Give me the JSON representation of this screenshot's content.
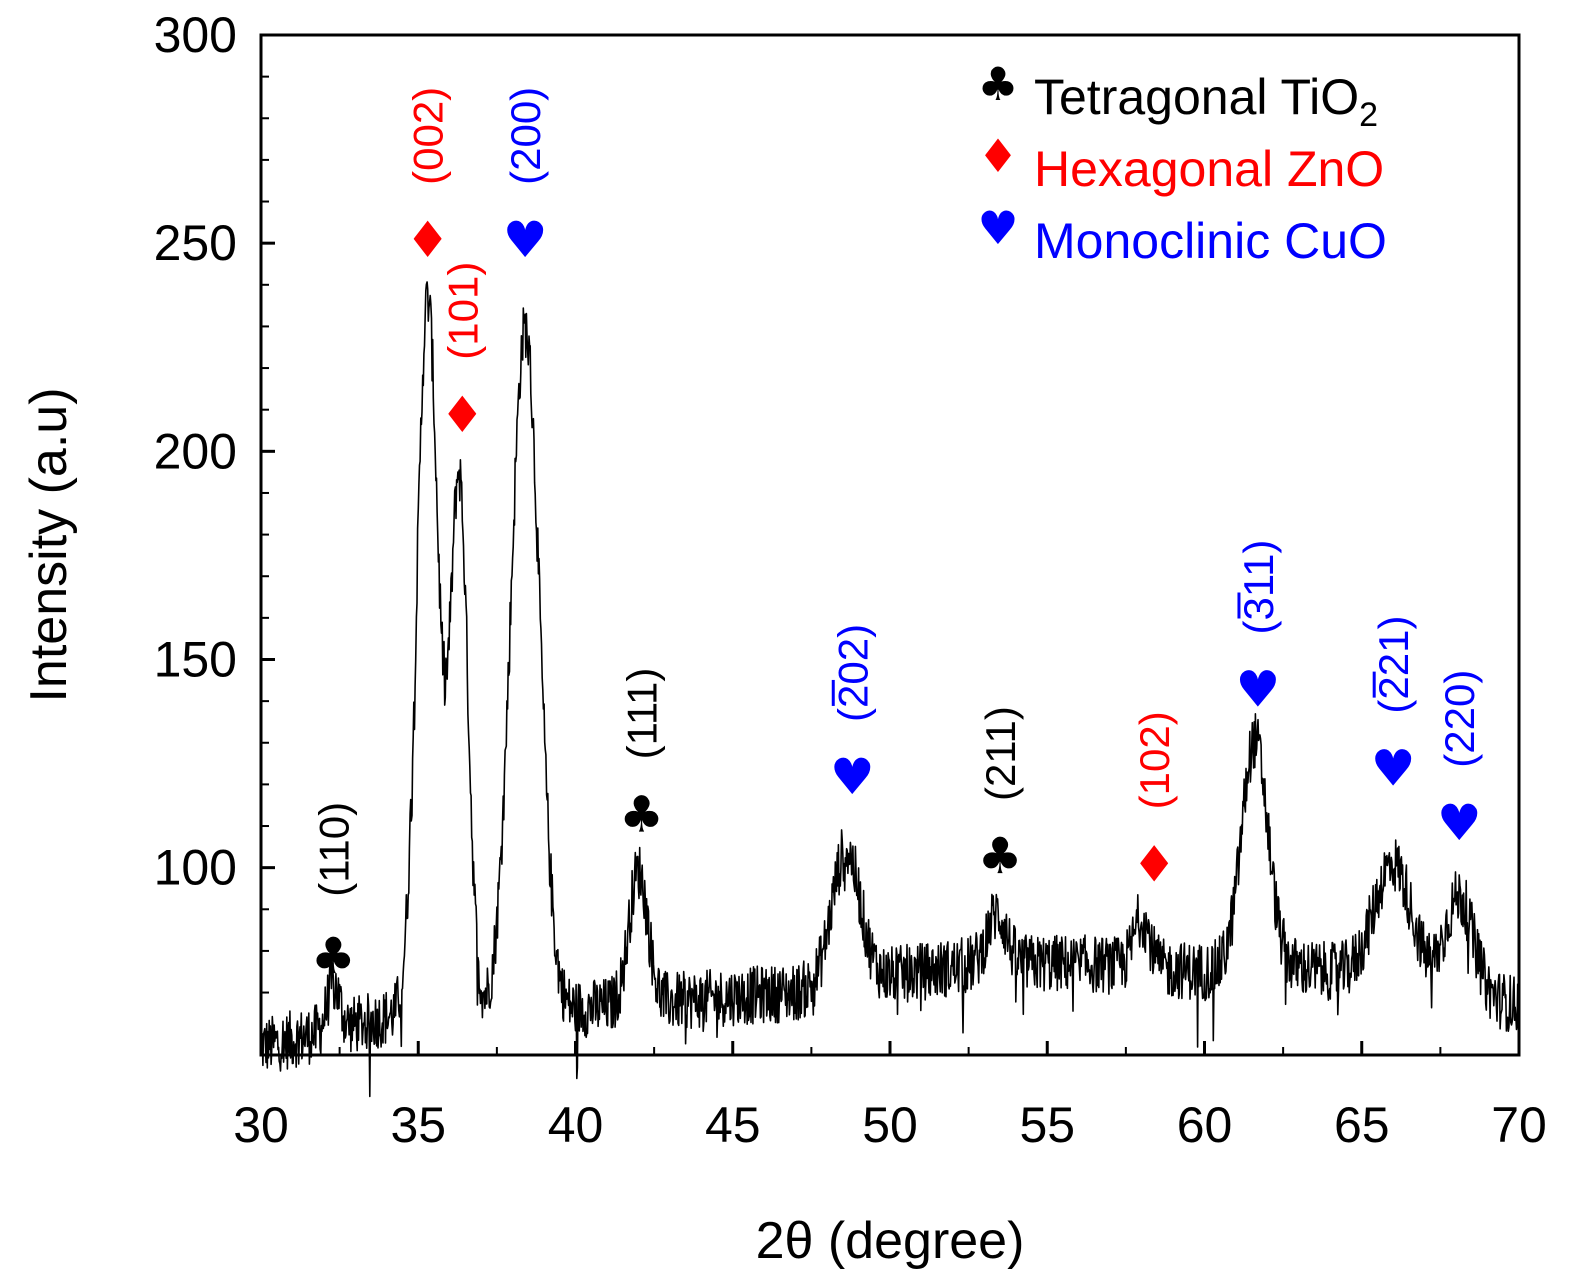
{
  "colors": {
    "tio2": "#000000",
    "zno": "#ff0000",
    "cuo": "#0000ff",
    "trace": "#000000",
    "background": "#ffffff"
  },
  "chart_data": {
    "type": "line",
    "title": "",
    "xlabel": "2θ (degree)",
    "ylabel": "Intensity (a.u)",
    "xlim": [
      30,
      70
    ],
    "ylim": [
      55,
      300
    ],
    "x_ticks": [
      30,
      35,
      40,
      45,
      50,
      55,
      60,
      65,
      70
    ],
    "y_ticks": [
      100,
      150,
      200,
      250,
      300
    ],
    "grid": false,
    "legend_position": "top-right",
    "legend": [
      {
        "symbol_icon": "club-icon",
        "symbol": "♣",
        "text": "Tetragonal TiO",
        "subscript": "2",
        "color": "#000000"
      },
      {
        "symbol_icon": "diamond-icon",
        "symbol": "♦",
        "text": "Hexagonal ZnO",
        "subscript": "",
        "color": "#ff0000"
      },
      {
        "symbol_icon": "heart-icon",
        "symbol": "♥",
        "text": "Monoclinic CuO",
        "subscript": "",
        "color": "#0000ff"
      }
    ],
    "series": [
      {
        "baseline": [
          [
            30,
            57
          ],
          [
            34,
            64
          ],
          [
            40,
            66
          ],
          [
            45,
            69
          ],
          [
            47,
            70
          ],
          [
            50,
            74
          ],
          [
            53,
            77
          ],
          [
            56,
            77
          ],
          [
            60,
            75
          ],
          [
            63,
            76
          ],
          [
            66,
            73
          ],
          [
            70,
            67
          ]
        ],
        "peaks": [
          {
            "x": 32.3,
            "height": 11,
            "width": 0.2
          },
          {
            "x": 35.3,
            "height": 172,
            "width": 0.34
          },
          {
            "x": 36.3,
            "height": 128,
            "width": 0.28
          },
          {
            "x": 38.4,
            "height": 164,
            "width": 0.45
          },
          {
            "x": 42.0,
            "height": 32,
            "width": 0.3
          },
          {
            "x": 48.6,
            "height": 32,
            "width": 0.45
          },
          {
            "x": 53.4,
            "height": 12,
            "width": 0.3
          },
          {
            "x": 58.0,
            "height": 12,
            "width": 0.25
          },
          {
            "x": 61.6,
            "height": 55,
            "width": 0.42
          },
          {
            "x": 66.0,
            "height": 28,
            "width": 0.6
          },
          {
            "x": 68.1,
            "height": 23,
            "width": 0.45
          }
        ],
        "noise_amplitude": 7
      }
    ],
    "peak_annotations": [
      {
        "phase": "TiO2",
        "symbol": "♣",
        "symbol_icon": "club-icon",
        "hkl": "(110)",
        "bar": "",
        "x": 32.3,
        "marker_y": 79,
        "label_y": 93,
        "color": "#000000"
      },
      {
        "phase": "ZnO",
        "symbol": "♦",
        "symbol_icon": "diamond-icon",
        "hkl": "(002)",
        "bar": "",
        "x": 35.3,
        "marker_y": 251,
        "label_y": 264,
        "color": "#ff0000"
      },
      {
        "phase": "ZnO",
        "symbol": "♦",
        "symbol_icon": "diamond-icon",
        "hkl": "(101)",
        "bar": "",
        "x": 36.4,
        "marker_y": 209,
        "label_y": 222,
        "color": "#ff0000"
      },
      {
        "phase": "CuO",
        "symbol": "♥",
        "symbol_icon": "heart-icon",
        "hkl": "(200)",
        "bar": "",
        "x": 38.4,
        "marker_y": 251,
        "label_y": 264,
        "color": "#0000ff"
      },
      {
        "phase": "TiO2",
        "symbol": "♣",
        "symbol_icon": "club-icon",
        "hkl": "(111)",
        "bar": "",
        "x": 42.1,
        "marker_y": 113,
        "label_y": 126,
        "color": "#000000"
      },
      {
        "phase": "CuO",
        "symbol": "♥",
        "symbol_icon": "heart-icon",
        "hkl": "(202)",
        "bar": "2",
        "x": 48.8,
        "marker_y": 122,
        "label_y": 135,
        "color": "#0000ff"
      },
      {
        "phase": "TiO2",
        "symbol": "♣",
        "symbol_icon": "club-icon",
        "hkl": "(211)",
        "bar": "",
        "x": 53.5,
        "marker_y": 103,
        "label_y": 116,
        "color": "#000000"
      },
      {
        "phase": "ZnO",
        "symbol": "♦",
        "symbol_icon": "diamond-icon",
        "hkl": "(102)",
        "bar": "",
        "x": 58.4,
        "marker_y": 101,
        "label_y": 114,
        "color": "#ff0000"
      },
      {
        "phase": "CuO",
        "symbol": "♥",
        "symbol_icon": "heart-icon",
        "hkl": "(311)",
        "bar": "3",
        "x": 61.7,
        "marker_y": 143,
        "label_y": 156,
        "color": "#0000ff"
      },
      {
        "phase": "CuO",
        "symbol": "♥",
        "symbol_icon": "heart-icon",
        "hkl": "(221)",
        "bar": "2",
        "x": 66.0,
        "marker_y": 124,
        "label_y": 137,
        "color": "#0000ff"
      },
      {
        "phase": "CuO",
        "symbol": "♥",
        "symbol_icon": "heart-icon",
        "hkl": "(220)",
        "bar": "",
        "x": 68.1,
        "marker_y": 111,
        "label_y": 124,
        "color": "#0000ff"
      }
    ]
  }
}
